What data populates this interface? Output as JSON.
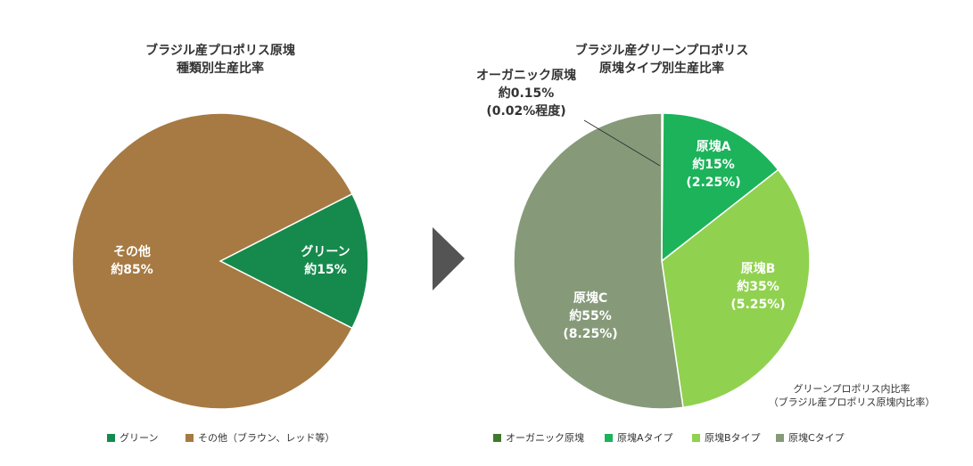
{
  "chart_data": [
    {
      "type": "pie",
      "title": [
        "ブラジル産プロポリス原塊",
        "種類別生産比率"
      ],
      "categories": [
        "グリーン",
        "その他（ブラウン、レッド等）"
      ],
      "labels": [
        "グリーン",
        "その他"
      ],
      "values": [
        15,
        85
      ],
      "value_labels": [
        "約15%",
        "約85%"
      ],
      "colors": [
        "#168a4c",
        "#a67a42"
      ]
    },
    {
      "type": "pie",
      "title": [
        "ブラジル産グリーンプロポリス",
        "原塊タイプ別生産比率"
      ],
      "categories": [
        "オーガニック原塊",
        "原塊Aタイプ",
        "原塊Bタイプ",
        "原塊Cタイプ"
      ],
      "labels": [
        "オーガニック原塊",
        "原塊A",
        "原塊B",
        "原塊C"
      ],
      "values": [
        0.15,
        15,
        35,
        55
      ],
      "value_labels": [
        "約0.15%",
        "約15%",
        "約35%",
        "約55%"
      ],
      "secondary_labels": [
        "(0.02%程度)",
        "(2.25%)",
        "(5.25%)",
        "(8.25%)"
      ],
      "colors": [
        "#3f7a2c",
        "#1cb35b",
        "#91d150",
        "#869a79"
      ],
      "note": [
        "グリーンプロポリス内比率",
        "（ブラジル産プロポリス原塊内比率）"
      ]
    }
  ]
}
